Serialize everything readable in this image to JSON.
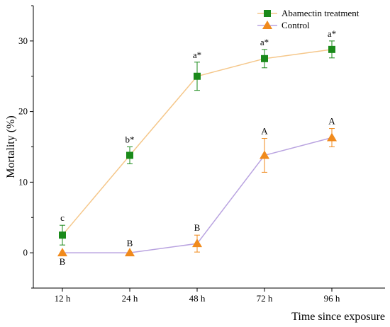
{
  "chart_data": {
    "type": "line",
    "categories": [
      "12 h",
      "24 h",
      "48 h",
      "72 h",
      "96 h"
    ],
    "xlabel": "Time since exposure",
    "ylabel": "Mortality (%)",
    "ylim": [
      -5,
      35
    ],
    "yticks": [
      0,
      10,
      20,
      30
    ],
    "grid": false,
    "legend_position": "top-right",
    "series": [
      {
        "name": "Abamectin treatment",
        "marker": "square",
        "marker_color": "#1a8a1a",
        "line_color": "#f5c78a",
        "error_color": "#1a8a1a",
        "values": [
          2.5,
          13.8,
          25.0,
          27.5,
          28.8
        ],
        "errors": [
          1.4,
          1.2,
          2.0,
          1.3,
          1.2
        ],
        "annotations": [
          "c",
          "b*",
          "a*",
          "a*",
          "a*"
        ],
        "annotation_side": [
          "above",
          "above",
          "above",
          "above",
          "above"
        ]
      },
      {
        "name": "Control",
        "marker": "triangle",
        "marker_color": "#f08a1c",
        "line_color": "#b9a3e0",
        "error_color": "#f08a1c",
        "values": [
          0,
          0,
          1.3,
          13.8,
          16.3
        ],
        "errors": [
          0,
          0,
          1.2,
          2.4,
          1.3
        ],
        "annotations": [
          "B",
          "B",
          "B",
          "A",
          "A"
        ],
        "annotation_side": [
          "below",
          "above",
          "above",
          "above",
          "above"
        ]
      }
    ]
  }
}
